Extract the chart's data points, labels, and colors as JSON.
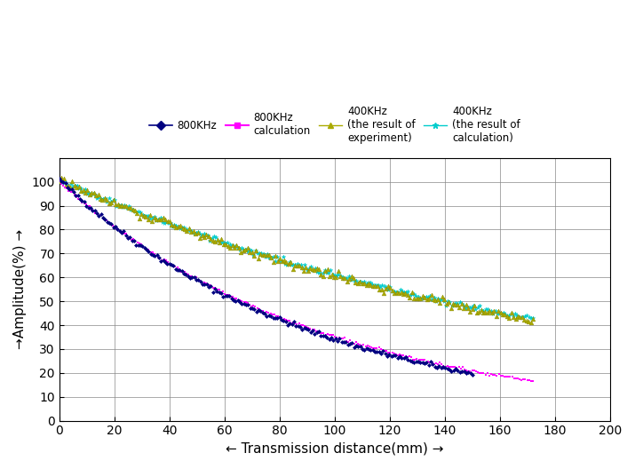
{
  "xlabel": "← Transmission distance(mm) →",
  "ylabel": "→Amplitude(%) →",
  "xlim": [
    0,
    200
  ],
  "ylim": [
    0,
    110
  ],
  "xticks": [
    0,
    20,
    40,
    60,
    80,
    100,
    120,
    140,
    160,
    180,
    200
  ],
  "yticks": [
    0,
    10,
    20,
    30,
    40,
    50,
    60,
    70,
    80,
    90,
    100
  ],
  "background_color": "#ffffff",
  "grid_color": "#888888",
  "series_800exp": {
    "label": "800KHz",
    "color": "#000080",
    "marker": "D",
    "markersize": 2.5,
    "x_end": 150,
    "n_points": 200,
    "y0": 101,
    "decay": 0.01085,
    "noise_std": 0.5
  },
  "series_800calc": {
    "label": "800KHz\ncalculation",
    "color": "#FF00FF",
    "marker": "s",
    "markersize": 2.0,
    "x_end": 172,
    "n_points": 250,
    "y0": 100,
    "decay": 0.01045,
    "noise_std": 0.3
  },
  "series_400exp": {
    "label": "400KHz\n(the result of\nexperiment)",
    "color": "#AAAA00",
    "marker": "^",
    "markersize": 3.5,
    "x_end": 172,
    "n_points": 220,
    "y0": 101,
    "decay": 0.0051,
    "noise_std": 0.8
  },
  "series_400calc": {
    "label": "400KHz\n(the result of\ncalculation)",
    "color": "#00CCCC",
    "marker": "*",
    "markersize": 3.5,
    "x_end": 172,
    "n_points": 240,
    "y0": 101,
    "decay": 0.00505,
    "noise_std": 0.6
  },
  "legend_fontsize": 8.5,
  "tick_labelsize": 10,
  "axis_labelsize": 11
}
